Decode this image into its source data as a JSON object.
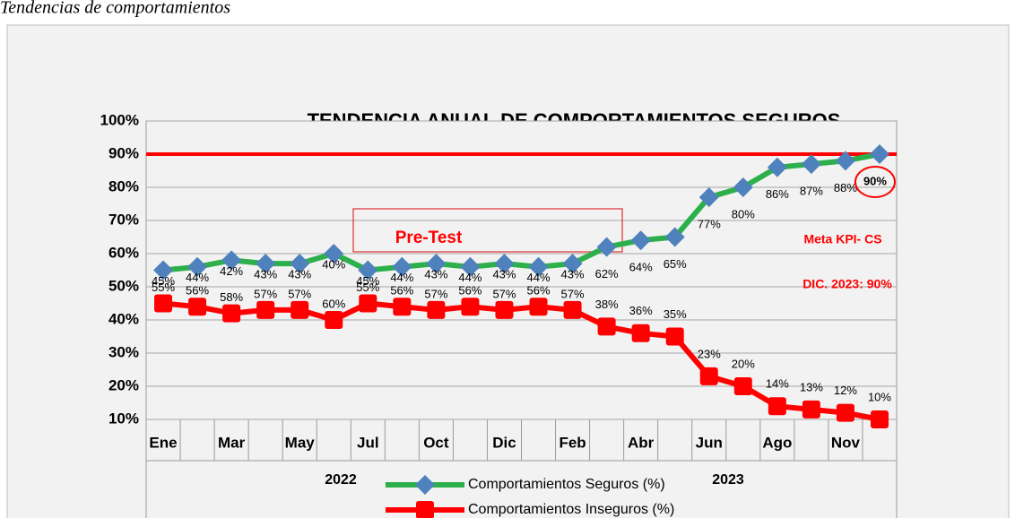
{
  "page_heading": "Tendencias de comportamientos",
  "chart_data": {
    "type": "line",
    "title": "TENDENCIA ANUAL DE COMPORTAMIENTOS SEGUROS",
    "categories": [
      "Ene",
      null,
      "Mar",
      null,
      "May",
      null,
      "Jul",
      null,
      "Oct",
      null,
      "Dic",
      null,
      "Feb",
      null,
      "Abr",
      null,
      "Jun",
      null,
      "Ago",
      null,
      "Nov",
      null
    ],
    "x_groups": [
      "2022",
      "2023"
    ],
    "series": [
      {
        "name": "Comportamientos Seguros (%)",
        "color": "#2db04b",
        "marker": "diamond",
        "marker_color": "#4f81bd",
        "values": [
          55,
          56,
          58,
          57,
          57,
          60,
          55,
          56,
          57,
          56,
          57,
          56,
          57,
          62,
          64,
          65,
          77,
          80,
          86,
          87,
          88,
          90
        ],
        "value_labels": [
          "55%",
          "56%",
          "58%",
          "57%",
          "57%",
          "60%",
          "55%",
          "56%",
          "57%",
          "56%",
          "57%",
          "56%",
          "57%",
          "62%",
          "64%",
          "65%",
          "77%",
          "80%",
          "86%",
          "87%",
          "88%",
          "90%"
        ]
      },
      {
        "name": "Comportamientos Inseguros (%)",
        "color": "#ff0000",
        "marker": "square",
        "marker_color": "#ff0000",
        "values": [
          45,
          44,
          42,
          43,
          43,
          40,
          45,
          44,
          43,
          44,
          43,
          44,
          43,
          38,
          36,
          35,
          23,
          20,
          14,
          13,
          12,
          10
        ],
        "value_labels": [
          "45%",
          "44%",
          "42%",
          "43%",
          "43%",
          "40%",
          "45%",
          "44%",
          "43%",
          "44%",
          "43%",
          "44%",
          "43%",
          "38%",
          "36%",
          "35%",
          "23%",
          "20%",
          "14%",
          "13%",
          "12%",
          "10%"
        ]
      }
    ],
    "ylim": [
      10,
      100
    ],
    "yticks": [
      {
        "value": 10,
        "label": "10%"
      },
      {
        "value": 20,
        "label": "20%"
      },
      {
        "value": 30,
        "label": "30%"
      },
      {
        "value": 40,
        "label": "40%"
      },
      {
        "value": 50,
        "label": "50%"
      },
      {
        "value": 60,
        "label": "60%"
      },
      {
        "value": 70,
        "label": "70%"
      },
      {
        "value": 80,
        "label": "80%"
      },
      {
        "value": 90,
        "label": "90%"
      },
      {
        "value": 100,
        "label": "100%"
      }
    ],
    "grid": true,
    "target": {
      "value": 90,
      "color": "#ff0000"
    },
    "annotations": [
      "Pre-Test",
      "Meta KPI- CS",
      "DIC. 2023: 90%"
    ],
    "legend": "bottom"
  }
}
